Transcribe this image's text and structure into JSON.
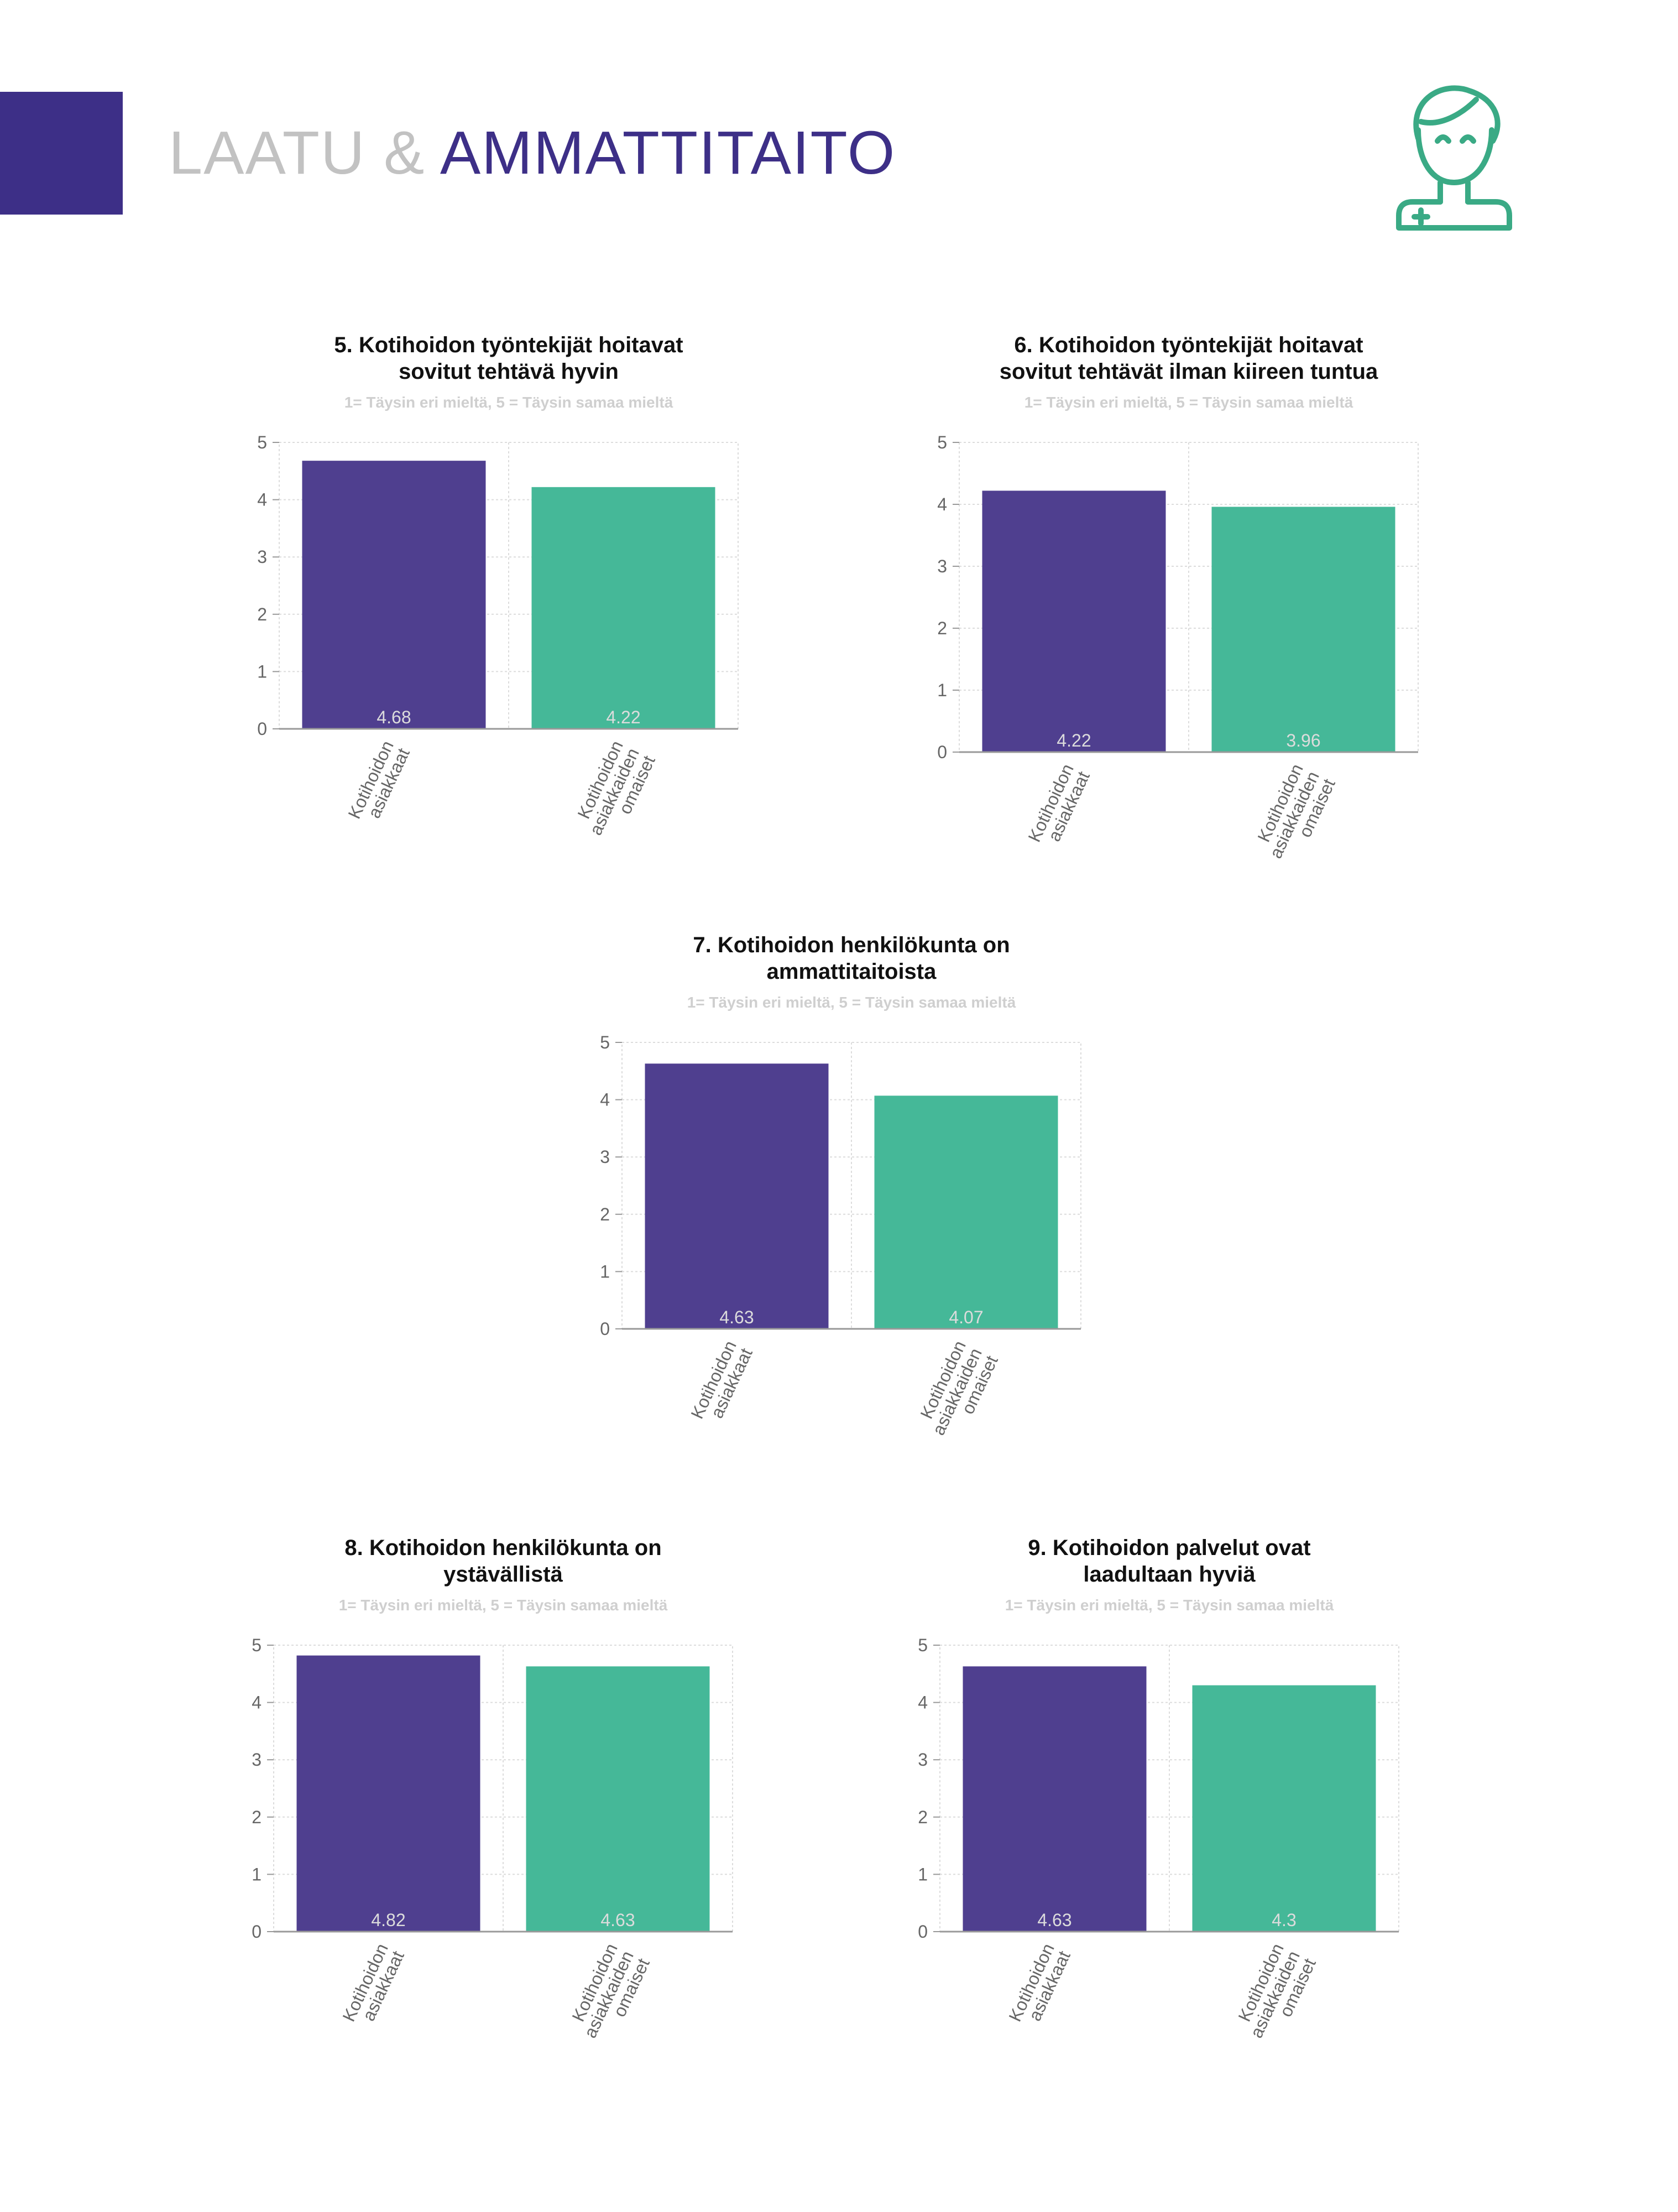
{
  "header": {
    "title_part1": "LAATU & ",
    "title_part2": "AMMATTITAITO",
    "icon": "nurse-icon"
  },
  "colors": {
    "accent_purple": "#3d2f87",
    "bar_purple": "#4f3f8f",
    "bar_green": "#45b898"
  },
  "chart_data": [
    {
      "type": "bar",
      "title_lines": [
        "5. Kotihoidon työntekijät hoitavat",
        "sovitut tehtävä hyvin"
      ],
      "subtitle": "1= Täysin eri mieltä, 5 = Täysin samaa mieltä",
      "categories": [
        [
          "Kotihoidon",
          "asiakkaat"
        ],
        [
          "Kotihoidon",
          "asiakkaiden",
          "omaiset"
        ]
      ],
      "values": [
        4.68,
        4.22
      ],
      "value_labels": [
        "4.68",
        "4.22"
      ],
      "ylim": [
        0,
        5
      ],
      "yticks": [
        "0",
        "1",
        "2",
        "3",
        "4",
        "5"
      ],
      "grid": true
    },
    {
      "type": "bar",
      "title_lines": [
        "6. Kotihoidon työntekijät hoitavat",
        "sovitut tehtävät ilman kiireen tuntua"
      ],
      "subtitle": "1= Täysin eri mieltä, 5 = Täysin samaa mieltä",
      "categories": [
        [
          "Kotihoidon",
          "asiakkaat"
        ],
        [
          "Kotihoidon",
          "asiakkaiden",
          "omaiset"
        ]
      ],
      "values": [
        4.22,
        3.96
      ],
      "value_labels": [
        "4.22",
        "3.96"
      ],
      "ylim": [
        0,
        5
      ],
      "yticks": [
        "0",
        "1",
        "2",
        "3",
        "4",
        "5"
      ],
      "grid": true
    },
    {
      "type": "bar",
      "title_lines": [
        "7. Kotihoidon henkilökunta on",
        "ammattitaitoista"
      ],
      "subtitle": "1= Täysin eri mieltä, 5 = Täysin samaa mieltä",
      "categories": [
        [
          "Kotihoidon",
          "asiakkaat"
        ],
        [
          "Kotihoidon",
          "asiakkaiden",
          "omaiset"
        ]
      ],
      "values": [
        4.63,
        4.07
      ],
      "value_labels": [
        "4.63",
        "4.07"
      ],
      "ylim": [
        0,
        5
      ],
      "yticks": [
        "0",
        "1",
        "2",
        "3",
        "4",
        "5"
      ],
      "grid": true
    },
    {
      "type": "bar",
      "title_lines": [
        "8. Kotihoidon henkilökunta on",
        "ystävällistä"
      ],
      "subtitle": "1= Täysin eri mieltä, 5 = Täysin samaa mieltä",
      "categories": [
        [
          "Kotihoidon",
          "asiakkaat"
        ],
        [
          "Kotihoidon",
          "asiakkaiden",
          "omaiset"
        ]
      ],
      "values": [
        4.82,
        4.63
      ],
      "value_labels": [
        "4.82",
        "4.63"
      ],
      "ylim": [
        0,
        5
      ],
      "yticks": [
        "0",
        "1",
        "2",
        "3",
        "4",
        "5"
      ],
      "grid": true
    },
    {
      "type": "bar",
      "title_lines": [
        "9. Kotihoidon palvelut ovat",
        "laadultaan hyviä"
      ],
      "subtitle": "1= Täysin eri mieltä, 5 = Täysin samaa mieltä",
      "categories": [
        [
          "Kotihoidon",
          "asiakkaat"
        ],
        [
          "Kotihoidon",
          "asiakkaiden",
          "omaiset"
        ]
      ],
      "values": [
        4.63,
        4.3
      ],
      "value_labels": [
        "4.63",
        "4.3"
      ],
      "ylim": [
        0,
        5
      ],
      "yticks": [
        "0",
        "1",
        "2",
        "3",
        "4",
        "5"
      ],
      "grid": true
    }
  ]
}
